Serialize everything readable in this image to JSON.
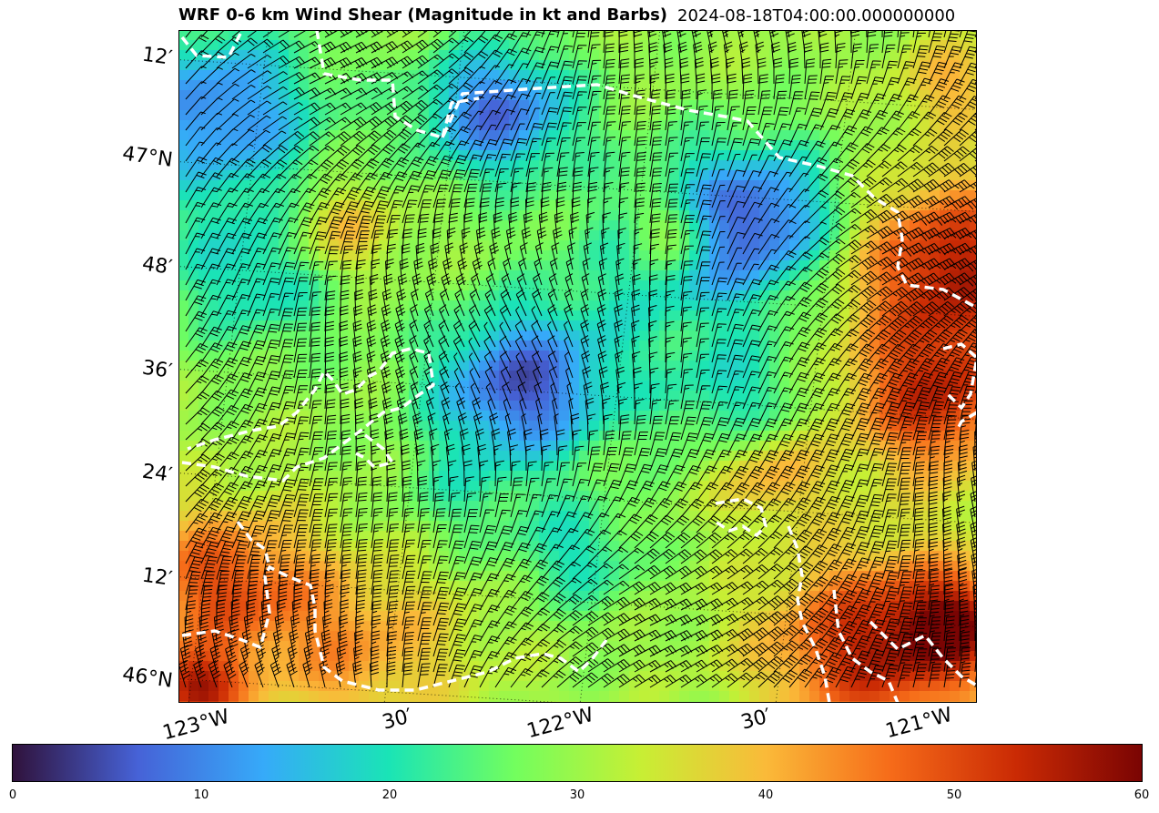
{
  "title": {
    "main": "WRF 0-6 km Wind Shear (Magnitude in kt and Barbs)",
    "time": "2024-08-18T04:00:00.000000000"
  },
  "axes": {
    "lat_labels": [
      "12′",
      "47°N",
      "48′",
      "36′",
      "24′",
      "12′",
      "46°N"
    ],
    "lon_labels": [
      "123°W",
      "30′",
      "122°W",
      "30′",
      "121°W"
    ]
  },
  "colorbar": {
    "colormap": "turbo",
    "ticks": [
      "0",
      "10",
      "20",
      "30",
      "40",
      "50",
      "60"
    ],
    "range": [
      0,
      60
    ],
    "colors": [
      "#30123b",
      "#4662d7",
      "#36aaf9",
      "#1ae4b6",
      "#72fe5e",
      "#c7ef34",
      "#faba39",
      "#f66b19",
      "#ca2a04",
      "#7a0403"
    ]
  },
  "map": {
    "boundary_color": "#ffffff",
    "barb_color": "#000000"
  }
}
